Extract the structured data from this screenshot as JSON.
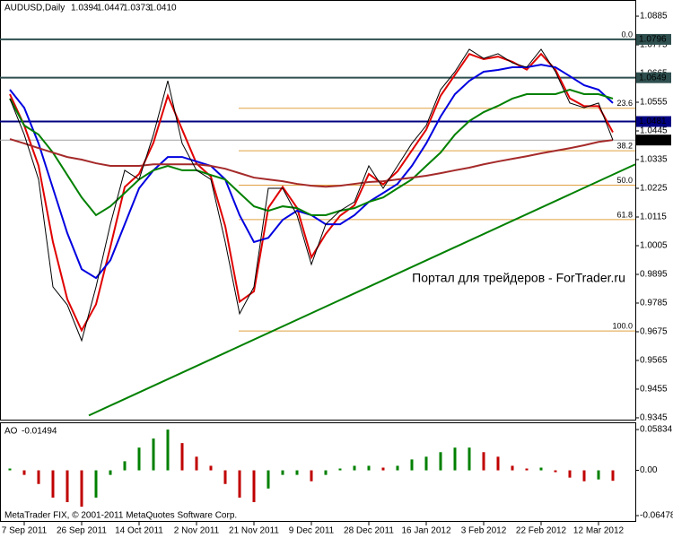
{
  "chart_data": [
    {
      "type": "line",
      "title": "AUDUSD,Daily",
      "ohlc": [
        1.0394,
        1.0447,
        1.0373,
        {
          "value": 1.041,
          "label": "1.0410"
        }
      ],
      "categories": [
        null,
        "7 Sep 2011",
        null,
        null,
        null,
        "26 Sep 2011",
        null,
        null,
        null,
        "14 Oct 2011",
        null,
        null,
        null,
        "2 Nov 2011",
        null,
        null,
        null,
        "21 Nov 2011",
        null,
        null,
        null,
        "9 Dec 2011",
        null,
        null,
        null,
        "28 Dec 2011",
        null,
        null,
        null,
        "16 Jan 2012",
        null,
        null,
        null,
        "3 Feb 2012",
        null,
        null,
        null,
        "22 Feb 2012",
        null,
        null,
        null,
        "12 Mar 2012",
        null
      ],
      "series": [
        {
          "color": "#000000",
          "values": [
            1.0569,
            1.0431,
            1.0259,
            0.9847,
            0.9778,
            0.9641,
            0.9847,
            1.0087,
            1.0294,
            1.0259,
            1.0431,
            1.0637,
            1.0397,
            1.0294,
            1.0259,
            1.0019,
            0.9744,
            0.9847,
            1.0225,
            1.0225,
            1.0122,
            0.9933,
            1.0087,
            1.0139,
            1.0173,
            1.0311,
            1.0225,
            1.0311,
            1.0397,
            1.0466,
            1.0603,
            1.0672,
            1.0758,
            1.0723,
            1.0741,
            1.0706,
            1.0689,
            1.0758,
            1.0672,
            1.0552,
            1.0534,
            1.0552,
            1.041
          ]
        },
        {
          "color": "#e00000",
          "values": [
            1.0586,
            1.0466,
            1.0311,
            1.0019,
            0.98,
            0.968,
            0.978,
            1.0,
            1.023,
            1.028,
            1.04,
            1.058,
            1.045,
            1.032,
            1.027,
            1.008,
            0.979,
            0.983,
            1.015,
            1.023,
            1.015,
            0.996,
            1.005,
            1.012,
            1.016,
            1.028,
            1.024,
            1.029,
            1.037,
            1.045,
            1.058,
            1.066,
            1.074,
            1.072,
            1.073,
            1.071,
            1.068,
            1.074,
            1.068,
            1.057,
            1.054,
            1.054,
            1.044
          ]
        },
        {
          "color": "#0000e0",
          "values": [
            1.0603,
            1.0534,
            1.0397,
            1.0225,
            1.0053,
            0.9915,
            0.9881,
            0.9949,
            1.0087,
            1.0225,
            1.0294,
            1.0345,
            1.0345,
            1.0328,
            1.0311,
            1.0259,
            1.0122,
            1.0019,
            1.0035,
            1.0104,
            1.0139,
            1.0122,
            1.0087,
            1.0087,
            1.0122,
            1.0173,
            1.0207,
            1.0242,
            1.0311,
            1.0397,
            1.05,
            1.0586,
            1.0637,
            1.0672,
            1.0679,
            1.0689,
            1.0689,
            1.0699,
            1.0689,
            1.0655,
            1.062,
            1.0603,
            1.0552
          ]
        },
        {
          "color": "#008000",
          "values": [
            1.0569,
            1.0466,
            1.0431,
            1.0362,
            1.0276,
            1.019,
            1.0122,
            1.0156,
            1.0207,
            1.0259,
            1.0294,
            1.0311,
            1.0294,
            1.0294,
            1.0276,
            1.0259,
            1.0207,
            1.0156,
            1.0139,
            1.0156,
            1.0149,
            1.0122,
            1.0122,
            1.0139,
            1.0149,
            1.0173,
            1.019,
            1.0225,
            1.0259,
            1.0311,
            1.0362,
            1.0431,
            1.0483,
            1.0517,
            1.0541,
            1.0569,
            1.0586,
            1.0586,
            1.0586,
            1.0603,
            1.0586,
            1.0586,
            1.0569
          ]
        },
        {
          "color": "#a52a2a",
          "values": [
            1.0414,
            1.0397,
            1.0379,
            1.0362,
            1.0345,
            1.0335,
            1.0321,
            1.0311,
            1.0311,
            1.0311,
            1.0317,
            1.0317,
            1.0317,
            1.0317,
            1.0311,
            1.03,
            1.0283,
            1.0266,
            1.0259,
            1.0252,
            1.0242,
            1.0235,
            1.0231,
            1.0235,
            1.0242,
            1.0249,
            1.0252,
            1.0259,
            1.0266,
            1.0273,
            1.0283,
            1.0294,
            1.0304,
            1.0317,
            1.0328,
            1.0338,
            1.0348,
            1.0359,
            1.0369,
            1.0379,
            1.039,
            1.0403,
            1.041
          ]
        }
      ],
      "ylim": [
        0.9338,
        1.0947
      ],
      "yticks": [
        1.0885,
        1.0775,
        1.0665,
        1.0555,
        1.0445,
        1.0335,
        1.0225,
        1.0115,
        1.0005,
        0.9895,
        0.9785,
        0.9675,
        0.9565,
        0.9455,
        0.9345
      ],
      "levels": [
        {
          "value": 1.0796,
          "color": "#2f4f4f"
        },
        {
          "value": 1.0649,
          "color": "#2f4f4f"
        },
        {
          "value": 1.0481,
          "color": "#000080"
        },
        {
          "value": {
            "value": 1.041,
            "label": "1.0410"
          },
          "color": "#000000"
        }
      ],
      "fibo_color": "#e0a040",
      "fibo": [
        {
          "value": 1.0796,
          "label": "0.0"
        },
        {
          "value": 1.0532,
          "label": "23.6"
        },
        {
          "value": 1.0369,
          "label": "38.2"
        },
        {
          "value": 1.0237,
          "label": "50.0"
        },
        {
          "value": 1.0105,
          "label": "61.8"
        },
        {
          "value": 0.9678,
          "label": "100.0"
        }
      ],
      "trendline": {
        "color": "#008000",
        "values": [
          0.9354,
          1.0317
        ]
      },
      "watermark": "Портал для трейдеров - ForTrader.ru"
    },
    {
      "type": "bar",
      "title": "AO",
      "current": -0.01494,
      "up_color": "#008000",
      "down_color": "#c00000",
      "values": [
        0.0026,
        -0.0065,
        -0.0195,
        -0.039,
        -0.0455,
        -0.052,
        -0.039,
        -0.0065,
        0.013,
        0.0325,
        0.0455,
        0.0583,
        0.039,
        0.0195,
        0.0065,
        -0.0195,
        -0.039,
        -0.0455,
        -0.026,
        -0.0065,
        -0.0065,
        -0.0156,
        -0.0065,
        0.0026,
        0.0065,
        0.0065,
        0.0039,
        0.0065,
        0.0156,
        0.0195,
        0.026,
        0.0325,
        0.0325,
        0.026,
        0.0195,
        0.0065,
        0.0026,
        0.0039,
        -0.0026,
        -0.0104,
        -0.0156,
        -0.013,
        -0.01494
      ],
      "ylim": [
        -0.0737,
        0.0674
      ],
      "yticks": [
        0.05834,
        {
          "value": 0,
          "label": "0.00"
        },
        -0.06478
      ],
      "footer": "MetaTrader FIX, © 2001-2011 MetaQuotes Software Corp."
    }
  ]
}
